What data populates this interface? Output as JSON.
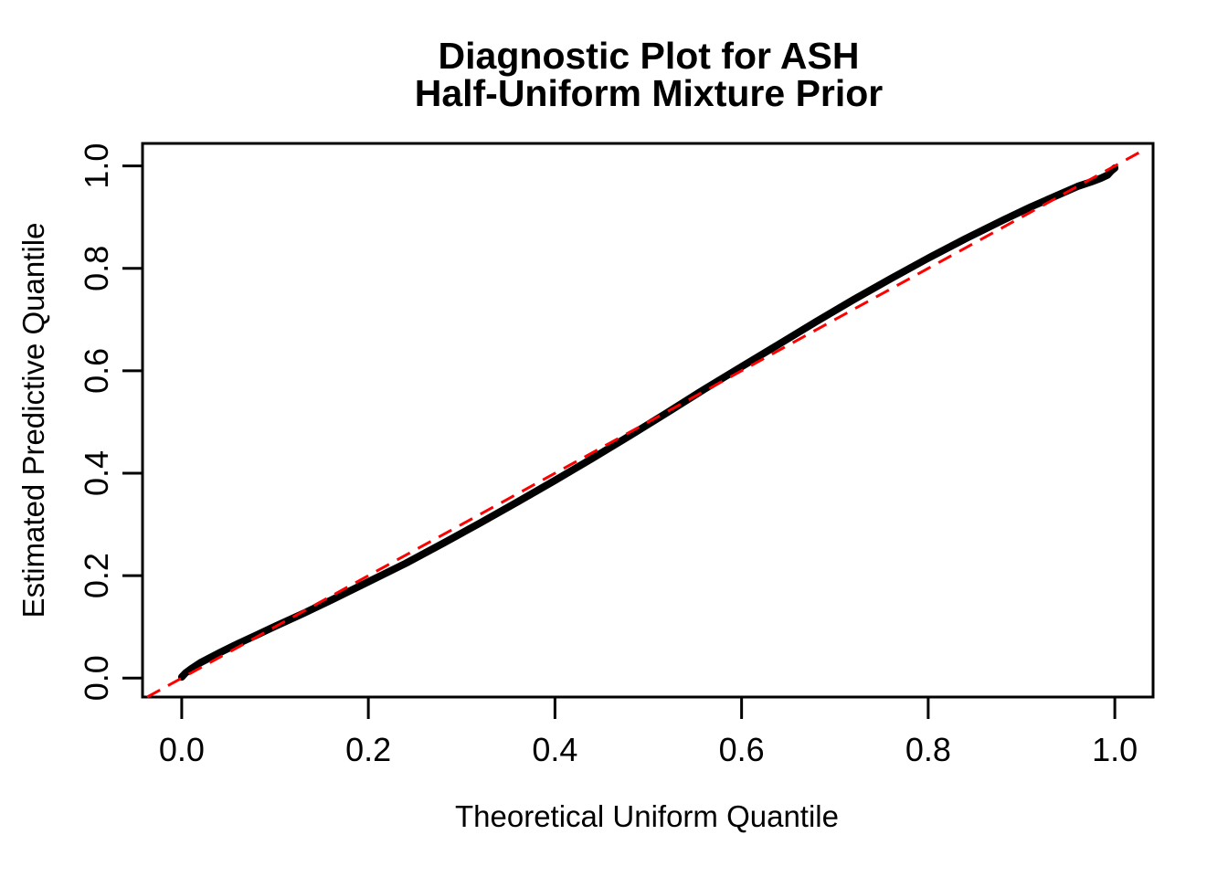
{
  "title": {
    "line1": "Diagnostic Plot for ASH",
    "line2": "Half-Uniform Mixture Prior"
  },
  "colors": {
    "background": "#FFFFFF",
    "foreground": "#000000",
    "curve": "#000000",
    "reference_line": "#FF0000"
  },
  "chart_data": {
    "type": "line",
    "title": "Diagnostic Plot for ASH Half-Uniform Mixture Prior",
    "xlabel": "Theoretical Uniform Quantile",
    "ylabel": "Estimated Predictive Quantile",
    "xlim": [
      -0.042,
      1.041
    ],
    "ylim": [
      -0.037,
      1.044
    ],
    "x_ticks": [
      "0.0",
      "0.2",
      "0.4",
      "0.6",
      "0.8",
      "1.0"
    ],
    "y_ticks": [
      "0.0",
      "0.2",
      "0.4",
      "0.6",
      "0.8",
      "1.0"
    ],
    "grid": false,
    "legend": null,
    "series": [
      {
        "name": "estimated-predictive-quantile-curve",
        "color": "#000000",
        "style": "thick-solid-points",
        "points": [
          [
            0.0,
            0.002
          ],
          [
            0.004,
            0.01
          ],
          [
            0.01,
            0.018
          ],
          [
            0.02,
            0.03
          ],
          [
            0.04,
            0.049
          ],
          [
            0.06,
            0.067
          ],
          [
            0.08,
            0.084
          ],
          [
            0.1,
            0.101
          ],
          [
            0.13,
            0.126
          ],
          [
            0.16,
            0.152
          ],
          [
            0.2,
            0.188
          ],
          [
            0.24,
            0.224
          ],
          [
            0.28,
            0.263
          ],
          [
            0.32,
            0.303
          ],
          [
            0.36,
            0.344
          ],
          [
            0.4,
            0.386
          ],
          [
            0.44,
            0.429
          ],
          [
            0.48,
            0.473
          ],
          [
            0.52,
            0.518
          ],
          [
            0.56,
            0.564
          ],
          [
            0.6,
            0.608
          ],
          [
            0.64,
            0.652
          ],
          [
            0.68,
            0.696
          ],
          [
            0.72,
            0.739
          ],
          [
            0.76,
            0.78
          ],
          [
            0.8,
            0.82
          ],
          [
            0.84,
            0.858
          ],
          [
            0.88,
            0.894
          ],
          [
            0.91,
            0.92
          ],
          [
            0.94,
            0.944
          ],
          [
            0.96,
            0.96
          ],
          [
            0.975,
            0.969
          ],
          [
            0.985,
            0.976
          ],
          [
            0.992,
            0.982
          ],
          [
            0.996,
            0.99
          ],
          [
            1.0,
            0.996
          ]
        ]
      },
      {
        "name": "reference-line-y-equals-x",
        "color": "#FF0000",
        "style": "dashed",
        "points": [
          [
            -0.037,
            -0.037
          ],
          [
            1.032,
            1.032
          ]
        ]
      }
    ]
  }
}
